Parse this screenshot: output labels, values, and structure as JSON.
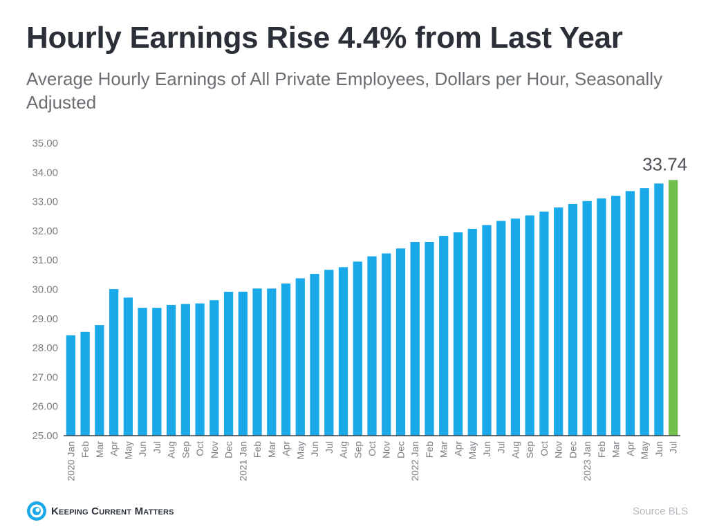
{
  "header": {
    "title": "Hourly Earnings Rise 4.4% from Last Year",
    "subtitle": "Average Hourly Earnings of All Private Employees, Dollars per Hour, Seasonally Adjusted"
  },
  "footer": {
    "brand": "Keeping Current Matters",
    "source": "Source BLS"
  },
  "colors": {
    "bar": "#1aa9e8",
    "highlight": "#72bf4e",
    "axis_text": "#7a7e83",
    "baseline": "#3a3f44"
  },
  "chart_data": {
    "type": "bar",
    "title": "Hourly Earnings Rise 4.4% from Last Year",
    "subtitle": "Average Hourly Earnings of All Private Employees, Dollars per Hour, Seasonally Adjusted",
    "xlabel": "",
    "ylabel": "",
    "ylim": [
      25,
      35
    ],
    "y_ticks": [
      "25.00",
      "26.00",
      "27.00",
      "28.00",
      "29.00",
      "30.00",
      "31.00",
      "32.00",
      "33.00",
      "34.00",
      "35.00"
    ],
    "grid": false,
    "categories": [
      "2020 Jan",
      "Feb",
      "Mar",
      "Apr",
      "May",
      "Jun",
      "Jul",
      "Aug",
      "Sep",
      "Oct",
      "Nov",
      "Dec",
      "2021 Jan",
      "Feb",
      "Mar",
      "Apr",
      "May",
      "Jun",
      "Jul",
      "Aug",
      "Sep",
      "Oct",
      "Nov",
      "Dec",
      "2022 Jan",
      "Feb",
      "Mar",
      "Apr",
      "May",
      "Jun",
      "Jul",
      "Aug",
      "Sep",
      "Oct",
      "Nov",
      "Dec",
      "2023 Jan",
      "Feb",
      "Mar",
      "Apr",
      "May",
      "Jun",
      "Jul"
    ],
    "values": [
      28.43,
      28.55,
      28.78,
      30.01,
      29.72,
      29.37,
      29.37,
      29.47,
      29.5,
      29.52,
      29.63,
      29.92,
      29.92,
      30.03,
      30.03,
      30.2,
      30.38,
      30.53,
      30.67,
      30.76,
      30.95,
      31.13,
      31.23,
      31.4,
      31.62,
      31.62,
      31.83,
      31.95,
      32.07,
      32.2,
      32.34,
      32.42,
      32.53,
      32.66,
      32.8,
      32.92,
      33.02,
      33.11,
      33.2,
      33.36,
      33.46,
      33.62,
      33.74
    ],
    "highlight_index": 42,
    "annotation": {
      "index": 42,
      "text": "33.74"
    }
  }
}
